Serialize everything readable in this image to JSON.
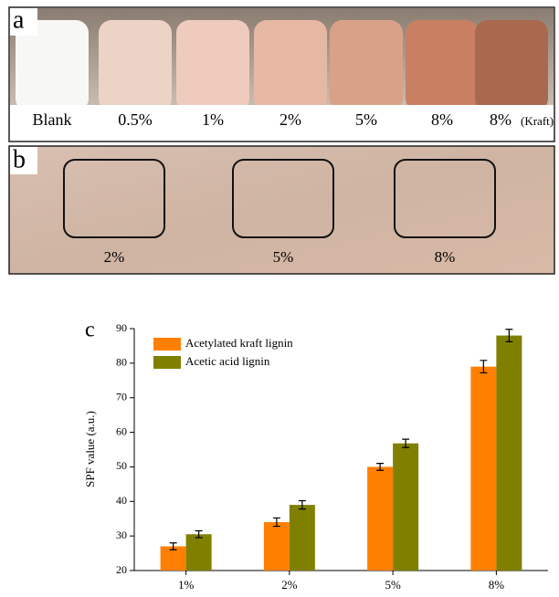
{
  "photo_a": {
    "label": "a",
    "samples": [
      "Blank",
      "0.5%",
      "1%",
      "2%",
      "5%",
      "8%",
      "8%"
    ],
    "kraft_note": "(Kraft)"
  },
  "photo_b": {
    "label": "b",
    "samples": [
      "2%",
      "5%",
      "8%"
    ]
  },
  "chart_data": {
    "type": "bar",
    "panel_label": "c",
    "y_label": "SPF value (a.u.)",
    "categories": [
      "1%",
      "2%",
      "5%",
      "8%"
    ],
    "series": [
      {
        "name": "Acetylated kraft lignin",
        "color": "#ff8000",
        "values": [
          27,
          34,
          50,
          79
        ],
        "errors": [
          1,
          1.2,
          1,
          1.8
        ]
      },
      {
        "name": "Acetic acid lignin",
        "color": "#808000",
        "values": [
          30.5,
          39,
          56.8,
          88
        ],
        "errors": [
          1,
          1.2,
          1.2,
          1.8
        ]
      }
    ],
    "ylim": [
      20,
      90
    ],
    "yticks": [
      20,
      30,
      40,
      50,
      60,
      70,
      80,
      90
    ],
    "legend": "top-left"
  }
}
